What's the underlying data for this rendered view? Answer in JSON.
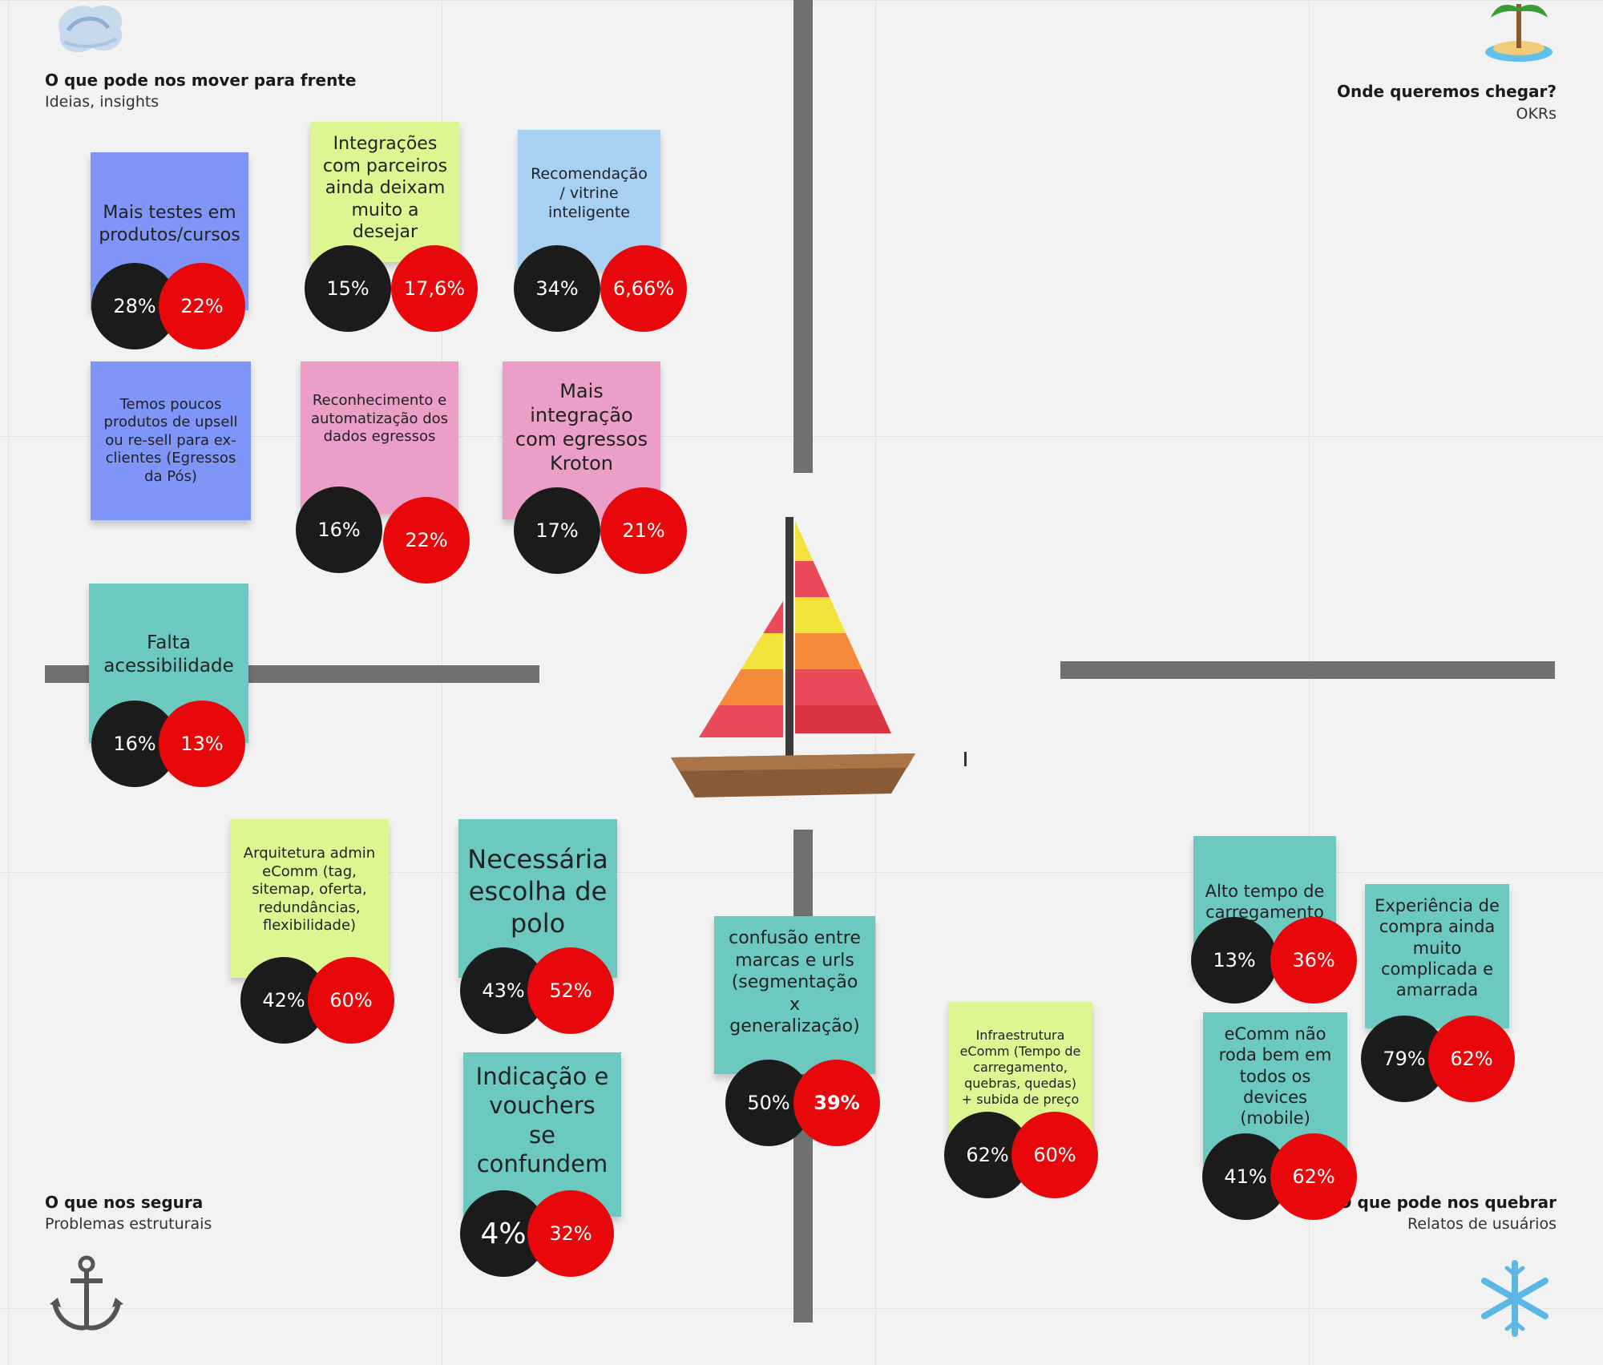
{
  "quadrants": {
    "top_left": {
      "title": "O que pode nos mover para frente",
      "subtitle": "Ideias, insights",
      "icon": "wind-icon"
    },
    "top_right": {
      "title": "Onde queremos chegar?",
      "subtitle": "OKRs",
      "icon": "island-icon"
    },
    "bottom_left": {
      "title": "O que nos segura",
      "subtitle": "Problemas estruturais",
      "icon": "anchor-icon"
    },
    "bottom_right": {
      "title": "O que pode nos quebrar",
      "subtitle": "Relatos de usuários",
      "icon": "snowflake-icon"
    }
  },
  "center_icon": "sailboat-icon",
  "colors": {
    "blue": "#7f95f7",
    "lime": "#dcf791",
    "sky": "#a8d0f3",
    "pink": "#ea9ec8",
    "teal": "#6cc9bf",
    "black_circle": "#1b1b1b",
    "red_circle": "#e8070b"
  },
  "notes": [
    {
      "text": "Mais testes em produtos/cursos",
      "color": "blue",
      "black": "28%",
      "red": "22%"
    },
    {
      "text": "Integrações com parceiros ainda deixam muito a desejar",
      "color": "lime",
      "black": "15%",
      "red": "17,6%"
    },
    {
      "text": "Recomendação / vitrine inteligente",
      "color": "sky",
      "black": "34%",
      "red": "6,66%"
    },
    {
      "text": "Temos poucos produtos de upsell ou re-sell para ex-clientes (Egressos da Pós)",
      "color": "blue"
    },
    {
      "text": "Reconhecimento e automatização dos dados egressos",
      "color": "pink",
      "black": "16%",
      "red": "22%"
    },
    {
      "text": "Mais integração com egressos Kroton",
      "color": "pink",
      "black": "17%",
      "red": "21%"
    },
    {
      "text": "Falta acessibilidade",
      "color": "teal",
      "black": "16%",
      "red": "13%"
    },
    {
      "text": "Arquitetura admin eComm (tag, sitemap, oferta, redundâncias, flexibilidade)",
      "color": "lime",
      "black": "42%",
      "red": "60%"
    },
    {
      "text": "Necessária escolha de polo",
      "color": "teal",
      "black": "43%",
      "red": "52%"
    },
    {
      "text": "Indicação e vouchers se confundem",
      "color": "teal",
      "black": "4%",
      "red": "32%"
    },
    {
      "text": "confusão entre marcas e urls (segmentação x generalização)",
      "color": "teal",
      "black": "50%",
      "red": "39%"
    },
    {
      "text": "Infraestrutura eComm (Tempo de carregamento, quebras, quedas) + subida de preço",
      "color": "lime",
      "black": "62%",
      "red": "60%"
    },
    {
      "text": "Alto tempo de carregamento",
      "color": "teal",
      "black": "13%",
      "red": "36%"
    },
    {
      "text": "Experiência de compra ainda muito complicada e amarrada",
      "color": "teal",
      "black": "79%",
      "red": "62%"
    },
    {
      "text": "eComm não roda bem em todos os devices (mobile)",
      "color": "teal",
      "black": "41%",
      "red": "62%"
    }
  ]
}
